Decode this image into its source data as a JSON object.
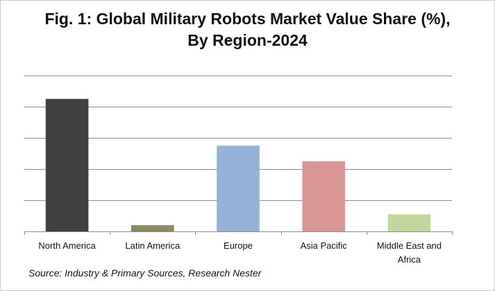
{
  "chart_data": {
    "type": "bar",
    "title_line1": "Fig. 1: Global Military Robots Market Value Share (%),",
    "title_line2": "By Region-2024",
    "categories": [
      "North America",
      "Latin America",
      "Europe",
      "Asia Pacific",
      "Middle East and Africa"
    ],
    "category_lines": [
      [
        "North America"
      ],
      [
        "Latin America"
      ],
      [
        "Europe"
      ],
      [
        "Asia Pacific"
      ],
      [
        "Middle East and",
        "Africa"
      ]
    ],
    "values": [
      42.5,
      2.0,
      27.5,
      22.5,
      5.5
    ],
    "colors": [
      "#404040",
      "#8b8960",
      "#95b3d7",
      "#da9694",
      "#c4d79b"
    ],
    "ylim": [
      0,
      50
    ],
    "ytick_step": 10,
    "show_y_tick_labels": false,
    "grid": true,
    "xlabel": "",
    "ylabel": ""
  },
  "source": "Source: Industry & Primary Sources, Research Nester"
}
